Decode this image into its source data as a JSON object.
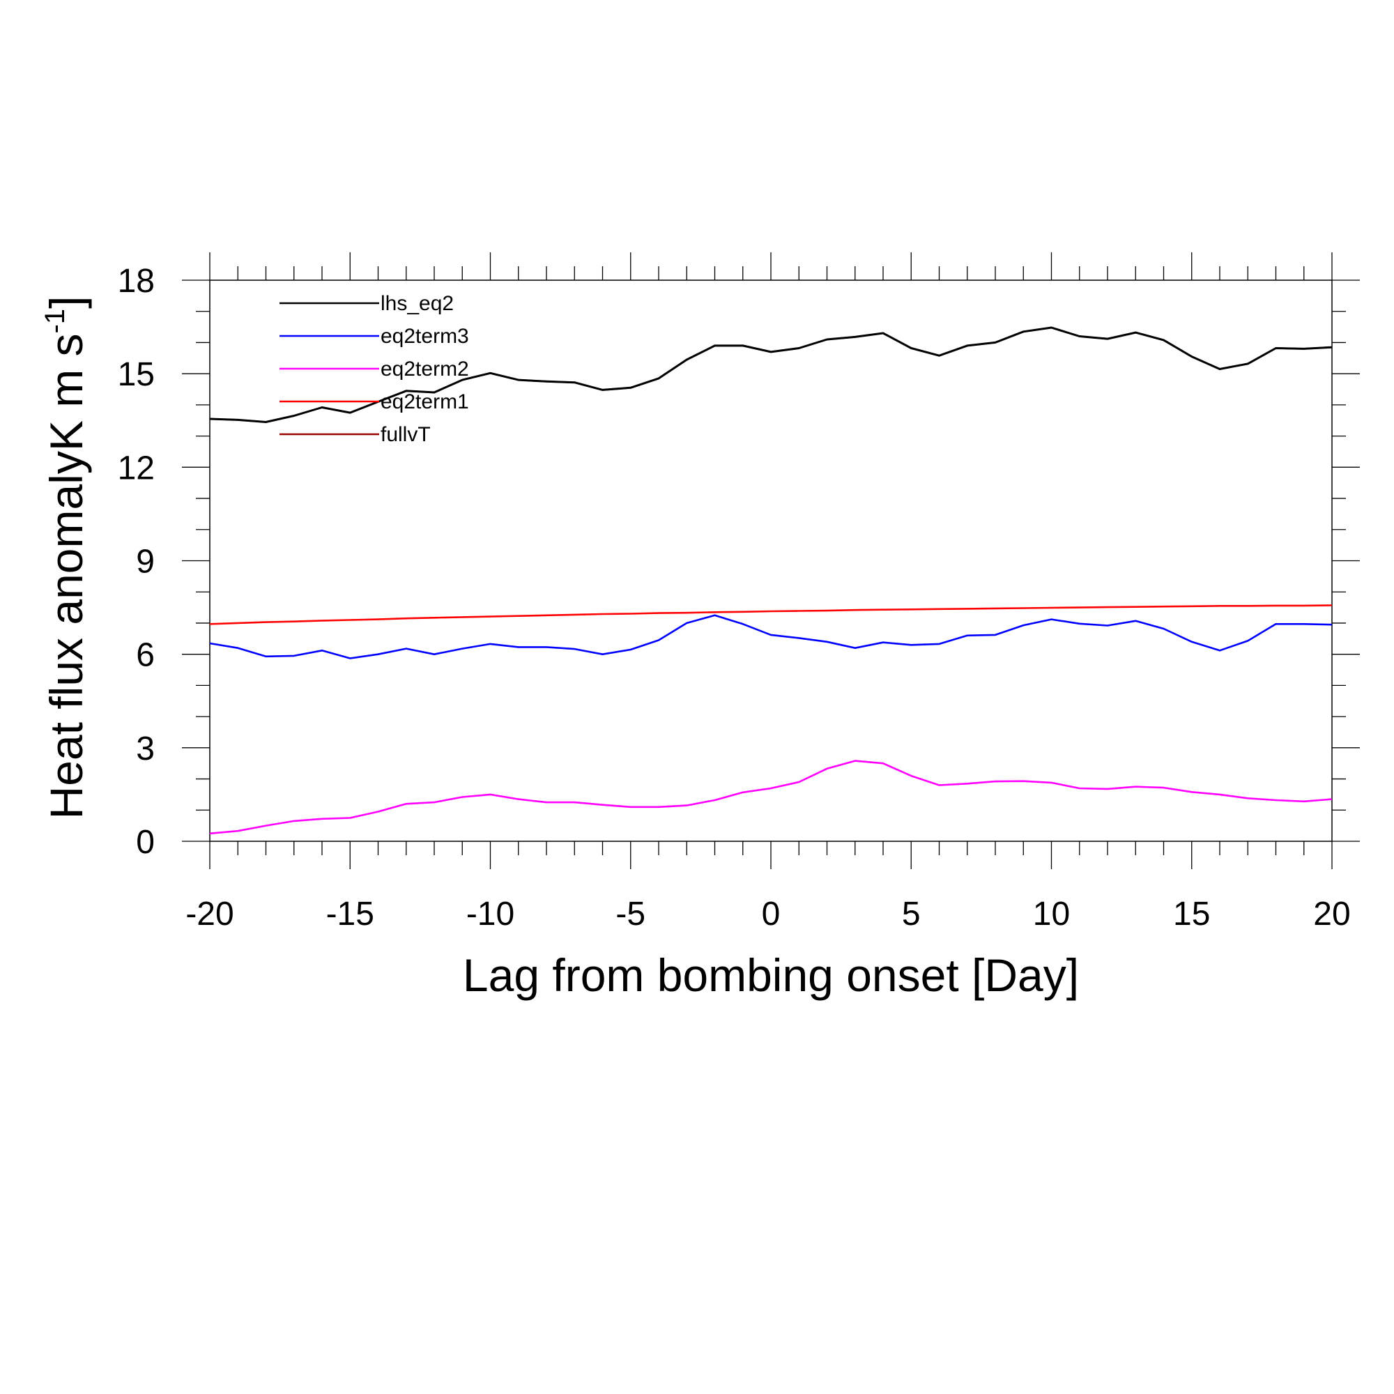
{
  "chart_data": {
    "type": "line",
    "title": "",
    "xlabel": "Lag from bombing onset [Day]",
    "ylabel": "Heat flux anomalyK m s",
    "ylabel_superscript": "-1",
    "ylabel_close": "]",
    "xlim": [
      -20,
      20
    ],
    "ylim": [
      0,
      18
    ],
    "xticks": [
      -20,
      -15,
      -10,
      -5,
      0,
      5,
      10,
      15,
      20
    ],
    "yticks": [
      0,
      3,
      6,
      9,
      12,
      15,
      18
    ],
    "xtick_labels": [
      "-20",
      "-15",
      "-10",
      "-5",
      "0",
      "5",
      "10",
      "15",
      "20"
    ],
    "ytick_labels": [
      "0",
      "3",
      "6",
      "9",
      "12",
      "15",
      "18"
    ],
    "grid": false,
    "legend_position": "top-left",
    "x": [
      -20,
      -19,
      -18,
      -17,
      -16,
      -15,
      -14,
      -13,
      -12,
      -11,
      -10,
      -9,
      -8,
      -7,
      -6,
      -5,
      -4,
      -3,
      -2,
      -1,
      0,
      1,
      2,
      3,
      4,
      5,
      6,
      7,
      8,
      9,
      10,
      11,
      12,
      13,
      14,
      15,
      16,
      17,
      18,
      19,
      20
    ],
    "series": [
      {
        "name": "lhs_eq2",
        "color": "#000000",
        "values": [
          13.55,
          13.52,
          13.45,
          13.65,
          13.92,
          13.75,
          14.1,
          14.45,
          14.4,
          14.8,
          15.02,
          14.8,
          14.75,
          14.72,
          14.48,
          14.55,
          14.85,
          15.45,
          15.9,
          15.9,
          15.7,
          15.82,
          16.1,
          16.18,
          16.3,
          15.82,
          15.58,
          15.9,
          16.0,
          16.35,
          16.48,
          16.2,
          16.12,
          16.32,
          16.08,
          15.55,
          15.15,
          15.32,
          15.82,
          15.8,
          15.85
        ]
      },
      {
        "name": "eq2term3",
        "color": "#0000ff",
        "values": [
          6.35,
          6.2,
          5.93,
          5.95,
          6.12,
          5.87,
          6.0,
          6.18,
          6.0,
          6.18,
          6.33,
          6.23,
          6.23,
          6.17,
          6.0,
          6.15,
          6.45,
          7.0,
          7.25,
          6.97,
          6.62,
          6.52,
          6.4,
          6.2,
          6.38,
          6.3,
          6.33,
          6.6,
          6.62,
          6.93,
          7.12,
          6.98,
          6.92,
          7.07,
          6.82,
          6.4,
          6.12,
          6.43,
          6.97,
          6.97,
          6.95
        ]
      },
      {
        "name": "eq2term2",
        "color": "#ff00ff",
        "values": [
          0.25,
          0.33,
          0.5,
          0.65,
          0.72,
          0.75,
          0.95,
          1.2,
          1.25,
          1.42,
          1.5,
          1.35,
          1.25,
          1.25,
          1.17,
          1.1,
          1.1,
          1.15,
          1.32,
          1.57,
          1.7,
          1.9,
          2.33,
          2.58,
          2.5,
          2.1,
          1.8,
          1.85,
          1.92,
          1.93,
          1.88,
          1.7,
          1.68,
          1.75,
          1.72,
          1.58,
          1.5,
          1.38,
          1.32,
          1.28,
          1.35
        ]
      },
      {
        "name": "eq2term1",
        "color": "#ff0000",
        "values": [
          6.97,
          7.0,
          7.03,
          7.05,
          7.08,
          7.1,
          7.12,
          7.15,
          7.17,
          7.19,
          7.21,
          7.23,
          7.25,
          7.27,
          7.29,
          7.3,
          7.32,
          7.33,
          7.35,
          7.36,
          7.38,
          7.39,
          7.4,
          7.42,
          7.43,
          7.44,
          7.45,
          7.46,
          7.47,
          7.48,
          7.49,
          7.5,
          7.51,
          7.52,
          7.53,
          7.54,
          7.55,
          7.55,
          7.56,
          7.56,
          7.57
        ]
      },
      {
        "name": "fullvT",
        "color": "#990000",
        "values": [
          13.55,
          13.52,
          13.45,
          13.65,
          13.92,
          13.75,
          14.1,
          14.45,
          14.4,
          14.8,
          15.02,
          14.8,
          14.75,
          14.72,
          14.48,
          14.55,
          14.85,
          15.45,
          15.9,
          15.9,
          15.7,
          15.82,
          16.1,
          16.18,
          16.3,
          15.82,
          15.58,
          15.9,
          16.0,
          16.35,
          16.48,
          16.2,
          16.12,
          16.32,
          16.08,
          15.55,
          15.15,
          15.32,
          15.82,
          15.8,
          15.85
        ]
      }
    ]
  }
}
